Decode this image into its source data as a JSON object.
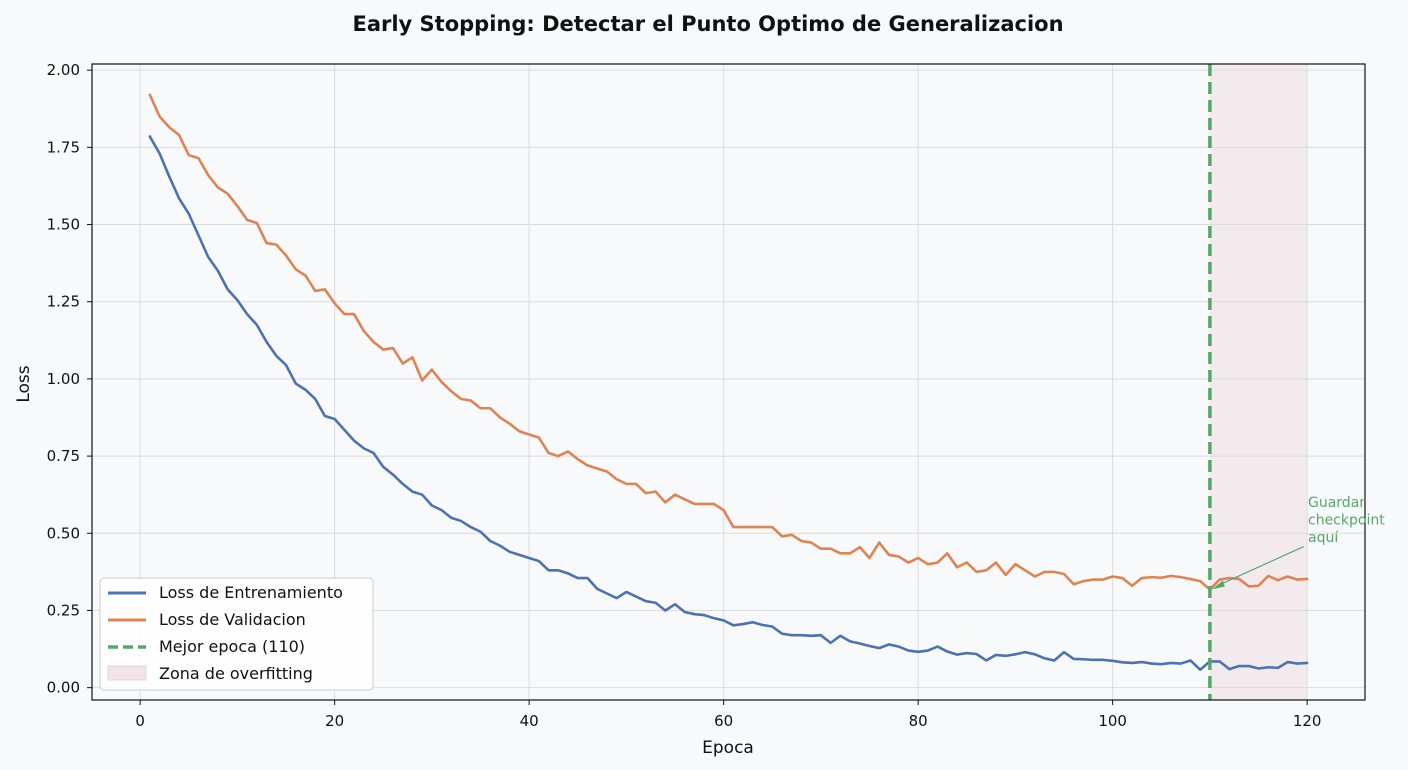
{
  "chart_data": {
    "type": "line",
    "title": "Early Stopping: Detectar el Punto Optimo de Generalizacion",
    "xlabel": "Epoca",
    "ylabel": "Loss",
    "xlim": [
      -4.95,
      125.95
    ],
    "ylim": [
      -0.04,
      2.02
    ],
    "x_ticks": [
      0,
      20,
      40,
      60,
      80,
      100,
      120
    ],
    "x_tick_labels": [
      "0",
      "20",
      "40",
      "60",
      "80",
      "100",
      "120"
    ],
    "y_ticks": [
      0.0,
      0.25,
      0.5,
      0.75,
      1.0,
      1.25,
      1.5,
      1.75,
      2.0
    ],
    "y_tick_labels": [
      "0.00",
      "0.25",
      "0.50",
      "0.75",
      "1.00",
      "1.25",
      "1.50",
      "1.75",
      "2.00"
    ],
    "grid": true,
    "legend_position": "lower-left",
    "x": [
      1,
      2,
      3,
      4,
      5,
      6,
      7,
      8,
      9,
      10,
      11,
      12,
      13,
      14,
      15,
      16,
      17,
      18,
      19,
      20,
      21,
      22,
      23,
      24,
      25,
      26,
      27,
      28,
      29,
      30,
      31,
      32,
      33,
      34,
      35,
      36,
      37,
      38,
      39,
      40,
      41,
      42,
      43,
      44,
      45,
      46,
      47,
      48,
      49,
      50,
      51,
      52,
      53,
      54,
      55,
      56,
      57,
      58,
      59,
      60,
      61,
      62,
      63,
      64,
      65,
      66,
      67,
      68,
      69,
      70,
      71,
      72,
      73,
      74,
      75,
      76,
      77,
      78,
      79,
      80,
      81,
      82,
      83,
      84,
      85,
      86,
      87,
      88,
      89,
      90,
      91,
      92,
      93,
      94,
      95,
      96,
      97,
      98,
      99,
      100,
      101,
      102,
      103,
      104,
      105,
      106,
      107,
      108,
      109,
      110,
      111,
      112,
      113,
      114,
      115,
      116,
      117,
      118,
      119,
      120
    ],
    "series": [
      {
        "name": "Loss de Entrenamiento",
        "color": "#4c72b0",
        "values": [
          1.785,
          1.73,
          1.655,
          1.585,
          1.535,
          1.465,
          1.395,
          1.35,
          1.29,
          1.255,
          1.21,
          1.175,
          1.12,
          1.075,
          1.045,
          0.985,
          0.965,
          0.935,
          0.88,
          0.87,
          0.835,
          0.8,
          0.775,
          0.76,
          0.715,
          0.69,
          0.66,
          0.635,
          0.625,
          0.59,
          0.575,
          0.55,
          0.54,
          0.52,
          0.505,
          0.475,
          0.46,
          0.44,
          0.43,
          0.42,
          0.41,
          0.38,
          0.38,
          0.37,
          0.355,
          0.355,
          0.32,
          0.305,
          0.29,
          0.31,
          0.295,
          0.28,
          0.275,
          0.25,
          0.27,
          0.245,
          0.238,
          0.235,
          0.225,
          0.218,
          0.202,
          0.206,
          0.212,
          0.203,
          0.198,
          0.175,
          0.17,
          0.17,
          0.168,
          0.17,
          0.145,
          0.168,
          0.15,
          0.143,
          0.135,
          0.128,
          0.14,
          0.133,
          0.12,
          0.116,
          0.12,
          0.133,
          0.117,
          0.107,
          0.112,
          0.109,
          0.088,
          0.106,
          0.103,
          0.108,
          0.115,
          0.108,
          0.095,
          0.088,
          0.115,
          0.093,
          0.092,
          0.09,
          0.09,
          0.087,
          0.082,
          0.08,
          0.083,
          0.078,
          0.076,
          0.08,
          0.078,
          0.088,
          0.058,
          0.085,
          0.085,
          0.06,
          0.07,
          0.07,
          0.062,
          0.066,
          0.064,
          0.083,
          0.078,
          0.08
        ]
      },
      {
        "name": "Loss de Validacion",
        "color": "#dd8452",
        "values": [
          1.92,
          1.85,
          1.815,
          1.79,
          1.725,
          1.715,
          1.66,
          1.62,
          1.6,
          1.56,
          1.515,
          1.505,
          1.44,
          1.435,
          1.4,
          1.355,
          1.335,
          1.285,
          1.29,
          1.245,
          1.21,
          1.21,
          1.155,
          1.12,
          1.095,
          1.1,
          1.05,
          1.07,
          0.995,
          1.03,
          0.99,
          0.96,
          0.935,
          0.93,
          0.905,
          0.905,
          0.875,
          0.855,
          0.83,
          0.82,
          0.81,
          0.76,
          0.75,
          0.765,
          0.74,
          0.72,
          0.71,
          0.7,
          0.675,
          0.66,
          0.66,
          0.63,
          0.635,
          0.6,
          0.625,
          0.61,
          0.595,
          0.595,
          0.595,
          0.575,
          0.52,
          0.52,
          0.52,
          0.52,
          0.52,
          0.49,
          0.495,
          0.475,
          0.47,
          0.45,
          0.45,
          0.435,
          0.435,
          0.455,
          0.42,
          0.47,
          0.43,
          0.425,
          0.405,
          0.42,
          0.4,
          0.405,
          0.435,
          0.39,
          0.405,
          0.375,
          0.38,
          0.405,
          0.365,
          0.4,
          0.38,
          0.36,
          0.375,
          0.375,
          0.368,
          0.335,
          0.345,
          0.35,
          0.35,
          0.36,
          0.355,
          0.33,
          0.355,
          0.358,
          0.356,
          0.362,
          0.358,
          0.352,
          0.345,
          0.318,
          0.35,
          0.355,
          0.352,
          0.328,
          0.33,
          0.362,
          0.348,
          0.36,
          0.35,
          0.352
        ]
      }
    ],
    "best_epoch": {
      "x": 110,
      "label": "Mejor epoca (110)",
      "color": "#55a868"
    },
    "overfitting_zone": {
      "x_start": 110,
      "x_end": 120,
      "label": "Zona de overfitting",
      "color": "#f2e4e8"
    },
    "annotation": {
      "lines": [
        "Guardar",
        "checkpoint",
        "aquí"
      ],
      "target": [
        110,
        0.318
      ],
      "text_anchor": [
        110.8,
        0.47
      ],
      "color": "#55a868"
    }
  }
}
